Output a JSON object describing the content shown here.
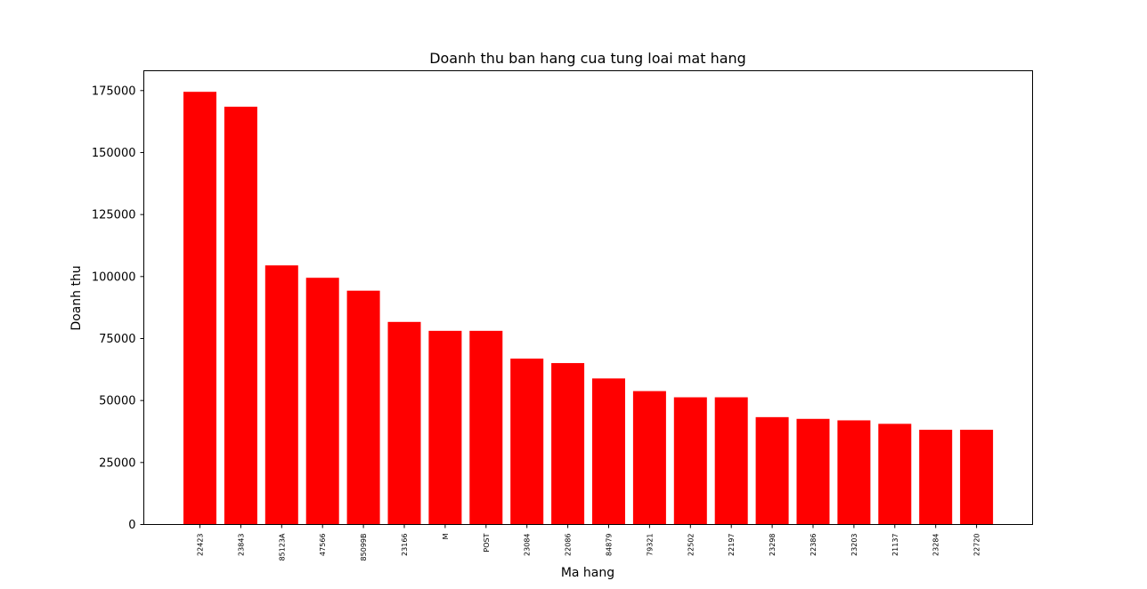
{
  "chart_data": {
    "type": "bar",
    "title": "Doanh thu ban hang cua tung loai mat hang",
    "xlabel": "Ma hang",
    "ylabel": "Doanh thu",
    "categories": [
      "22423",
      "23843",
      "85123A",
      "47566",
      "85099B",
      "23166",
      "M",
      "POST",
      "23084",
      "22086",
      "84879",
      "79321",
      "22502",
      "22197",
      "23298",
      "22386",
      "23203",
      "21137",
      "23284",
      "22720"
    ],
    "values": [
      174500,
      168500,
      104500,
      99500,
      94300,
      81700,
      78100,
      78100,
      66900,
      65100,
      58900,
      53800,
      51300,
      51300,
      43300,
      42600,
      42000,
      40600,
      38200,
      38200
    ],
    "ylim": [
      0,
      183000
    ],
    "yticks": [
      0,
      25000,
      50000,
      75000,
      100000,
      125000,
      150000,
      175000
    ],
    "ytick_labels": [
      "0",
      "25000",
      "50000",
      "75000",
      "100000",
      "125000",
      "150000",
      "175000"
    ],
    "bar_color": "#ff0000",
    "grid": false,
    "legend": "none"
  }
}
